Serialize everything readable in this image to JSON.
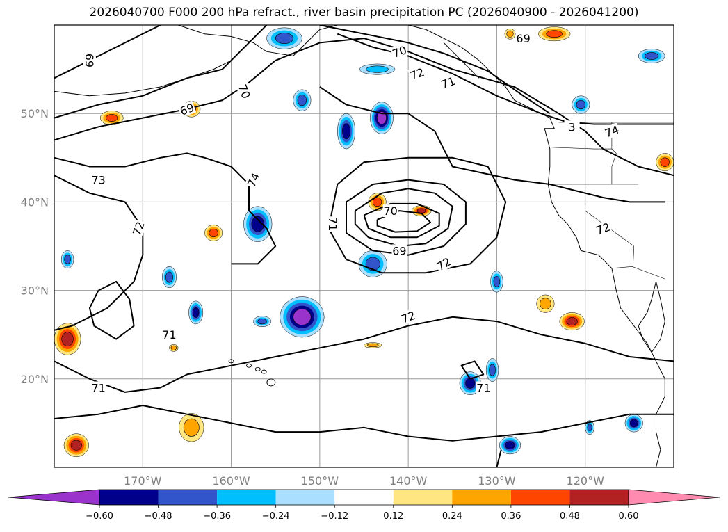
{
  "title": "2026040700 F000 200 hPa refract., river basin precipitation PC (2026040900 - 2026041200)",
  "map": {
    "lon_range": [
      -180,
      -110
    ],
    "lat_range": [
      10,
      60
    ],
    "lon_ticks": [
      -170,
      -160,
      -150,
      -140,
      -130,
      -120
    ],
    "lon_tick_labels": [
      "170°W",
      "160°W",
      "150°W",
      "140°W",
      "130°W",
      "120°W"
    ],
    "lat_ticks": [
      20,
      30,
      40,
      50
    ],
    "lat_tick_labels": [
      "20°N",
      "30°N",
      "40°N",
      "50°N"
    ],
    "grid": true
  },
  "contour_labels": [
    {
      "text": "69",
      "lon": -176,
      "lat": 56,
      "rot": 90
    },
    {
      "text": "70",
      "lon": -158.5,
      "lat": 52.5,
      "rot": 70
    },
    {
      "text": "69",
      "lon": -165,
      "lat": 50.5,
      "rot": -20
    },
    {
      "text": "73",
      "lon": -175,
      "lat": 42.5,
      "rot": 0
    },
    {
      "text": "74",
      "lon": -157.5,
      "lat": 42.5,
      "rot": -65
    },
    {
      "text": "72",
      "lon": -170.5,
      "lat": 37,
      "rot": -70
    },
    {
      "text": "71",
      "lon": -167,
      "lat": 25,
      "rot": 0
    },
    {
      "text": "71",
      "lon": -175,
      "lat": 19,
      "rot": 0
    },
    {
      "text": "70",
      "lon": -142,
      "lat": 39,
      "rot": 0
    },
    {
      "text": "71",
      "lon": -148.5,
      "lat": 37.5,
      "rot": 90
    },
    {
      "text": "69",
      "lon": -141,
      "lat": 34.5,
      "rot": 0
    },
    {
      "text": "72",
      "lon": -136,
      "lat": 33,
      "rot": -30
    },
    {
      "text": "72",
      "lon": -140,
      "lat": 27,
      "rot": -20
    },
    {
      "text": "70",
      "lon": -141,
      "lat": 57,
      "rot": -20
    },
    {
      "text": "72",
      "lon": -139,
      "lat": 54.5,
      "rot": -20
    },
    {
      "text": "71",
      "lon": -135.5,
      "lat": 53.5,
      "rot": -20
    },
    {
      "text": "69",
      "lon": -127,
      "lat": 58.5,
      "rot": 0
    },
    {
      "text": "74",
      "lon": -117,
      "lat": 48,
      "rot": -20
    },
    {
      "text": "3",
      "lon": -121.5,
      "lat": 48.5,
      "rot": 0
    },
    {
      "text": "72",
      "lon": -118,
      "lat": 37,
      "rot": -20
    },
    {
      "text": "71",
      "lon": -131.5,
      "lat": 19,
      "rot": 0
    }
  ],
  "precip_anomalies": [
    {
      "lon": -154,
      "lat": 58.5,
      "level": -0.36,
      "rx": 2.0,
      "ry": 1.2
    },
    {
      "lon": -143.5,
      "lat": 55,
      "level": -0.24,
      "rx": 2.0,
      "ry": 0.6
    },
    {
      "lon": -152,
      "lat": 51.5,
      "level": -0.36,
      "rx": 1.0,
      "ry": 1.2
    },
    {
      "lon": -147,
      "lat": 48,
      "level": -0.48,
      "rx": 1.0,
      "ry": 2.0
    },
    {
      "lon": -143,
      "lat": 49.5,
      "level": -0.6,
      "rx": 1.3,
      "ry": 1.8
    },
    {
      "lon": -157,
      "lat": 37.5,
      "level": -0.48,
      "rx": 1.6,
      "ry": 2.0
    },
    {
      "lon": -144,
      "lat": 33,
      "level": -0.36,
      "rx": 1.6,
      "ry": 1.5
    },
    {
      "lon": -152,
      "lat": 27,
      "level": -0.6,
      "rx": 2.5,
      "ry": 2.3
    },
    {
      "lon": -164,
      "lat": 27.5,
      "level": -0.48,
      "rx": 0.8,
      "ry": 1.3
    },
    {
      "lon": -167,
      "lat": 31.5,
      "level": -0.36,
      "rx": 0.8,
      "ry": 1.2
    },
    {
      "lon": -178.5,
      "lat": 33.5,
      "level": -0.36,
      "rx": 0.7,
      "ry": 1.0
    },
    {
      "lon": -156.5,
      "lat": 26.5,
      "level": -0.36,
      "rx": 1.0,
      "ry": 0.6
    },
    {
      "lon": -130,
      "lat": 31,
      "level": -0.36,
      "rx": 0.7,
      "ry": 1.2
    },
    {
      "lon": -133,
      "lat": 19.5,
      "level": -0.48,
      "rx": 1.2,
      "ry": 1.3
    },
    {
      "lon": -130.5,
      "lat": 21,
      "level": -0.36,
      "rx": 0.7,
      "ry": 1.3
    },
    {
      "lon": -128.5,
      "lat": 12.5,
      "level": -0.48,
      "rx": 1.2,
      "ry": 1.0
    },
    {
      "lon": -114.5,
      "lat": 15,
      "level": -0.48,
      "rx": 1.0,
      "ry": 1.0
    },
    {
      "lon": -119.5,
      "lat": 14.5,
      "level": -0.36,
      "rx": 0.5,
      "ry": 0.8
    },
    {
      "lon": -112.5,
      "lat": 56.5,
      "level": -0.36,
      "rx": 1.5,
      "ry": 0.8
    },
    {
      "lon": -120.5,
      "lat": 51,
      "level": -0.36,
      "rx": 1.0,
      "ry": 1.0
    },
    {
      "lon": -164.5,
      "lat": 50.5,
      "level": 0.36,
      "rx": 1.0,
      "ry": 0.9
    },
    {
      "lon": -173.5,
      "lat": 49.5,
      "level": 0.36,
      "rx": 1.3,
      "ry": 0.8
    },
    {
      "lon": -162,
      "lat": 36.5,
      "level": 0.36,
      "rx": 1.0,
      "ry": 0.9
    },
    {
      "lon": -143.5,
      "lat": 40,
      "level": 0.36,
      "rx": 1.0,
      "ry": 1.0
    },
    {
      "lon": -138.5,
      "lat": 39,
      "level": 0.48,
      "rx": 1.1,
      "ry": 0.6
    },
    {
      "lon": -178.5,
      "lat": 24.5,
      "level": 0.48,
      "rx": 1.5,
      "ry": 1.8
    },
    {
      "lon": -124.5,
      "lat": 28.5,
      "level": 0.24,
      "rx": 1.0,
      "ry": 1.0
    },
    {
      "lon": -121.5,
      "lat": 26.5,
      "level": 0.48,
      "rx": 1.4,
      "ry": 1.0
    },
    {
      "lon": -177.5,
      "lat": 12.5,
      "level": 0.48,
      "rx": 1.4,
      "ry": 1.3
    },
    {
      "lon": -164.5,
      "lat": 14.5,
      "level": 0.24,
      "rx": 1.4,
      "ry": 1.6
    },
    {
      "lon": -144,
      "lat": 23.8,
      "level": 0.24,
      "rx": 1.0,
      "ry": 0.3
    },
    {
      "lon": -123.5,
      "lat": 59,
      "level": 0.36,
      "rx": 1.8,
      "ry": 0.8
    },
    {
      "lon": -128.5,
      "lat": 59,
      "level": 0.24,
      "rx": 0.6,
      "ry": 0.6
    },
    {
      "lon": -111,
      "lat": 44.5,
      "level": 0.36,
      "rx": 1.0,
      "ry": 1.0
    },
    {
      "lon": -166.5,
      "lat": 23.5,
      "level": 0.24,
      "rx": 0.5,
      "ry": 0.4
    }
  ],
  "colorbar": {
    "levels": [
      -0.6,
      -0.48,
      -0.36,
      -0.24,
      -0.12,
      0.12,
      0.24,
      0.36,
      0.48,
      0.6
    ],
    "tick_labels": [
      "−0.60",
      "−0.48",
      "−0.36",
      "−0.24",
      "−0.12",
      "0.12",
      "0.24",
      "0.36",
      "0.48",
      "0.60"
    ],
    "colors": [
      "#9a33cc",
      "#00008b",
      "#3355cc",
      "#00bfff",
      "#aadfff",
      "#ffffff",
      "#ffe680",
      "#ffa500",
      "#ff4500",
      "#b22222",
      "#ff8bb0"
    ],
    "extend": "both"
  }
}
